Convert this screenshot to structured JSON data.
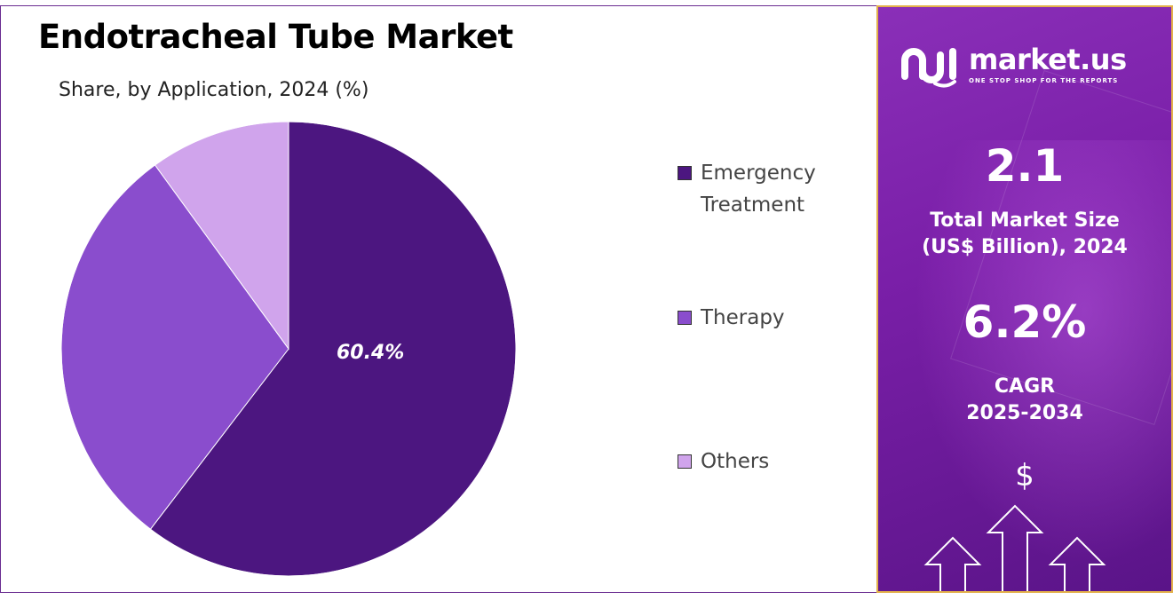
{
  "title": "Endotracheal Tube Market",
  "subtitle": "Share, by Application, 2024 (%)",
  "chart_data": {
    "type": "pie",
    "title": "Endotracheal Tube Market",
    "subtitle": "Share, by Application, 2024 (%)",
    "categories": [
      "Emergency Treatment",
      "Therapy",
      "Others"
    ],
    "values": [
      60.4,
      29.6,
      10.0
    ],
    "colors": [
      "#4c1680",
      "#8a4dcd",
      "#d0a4ec"
    ],
    "data_labels": [
      "60.4%",
      "",
      ""
    ],
    "legend_position": "right"
  },
  "legend": [
    {
      "label": "Emergency Treatment",
      "color": "#4c1680"
    },
    {
      "label": "Therapy",
      "color": "#8a4dcd"
    },
    {
      "label": "Others",
      "color": "#d0a4ec"
    }
  ],
  "panel": {
    "brand_name": "market.us",
    "brand_tagline": "ONE STOP SHOP FOR THE REPORTS",
    "market_size_value": "2.1",
    "market_size_label_1": "Total Market Size",
    "market_size_label_2": "(US$ Billion), 2024",
    "cagr_value": "6.2%",
    "cagr_label_1": "CAGR",
    "cagr_label_2": "2025-2034",
    "currency_symbol": "$",
    "colors": {
      "panel_bg": "#7a1fa8",
      "panel_border": "#e3b04b",
      "frame": "#6a2c91"
    }
  }
}
